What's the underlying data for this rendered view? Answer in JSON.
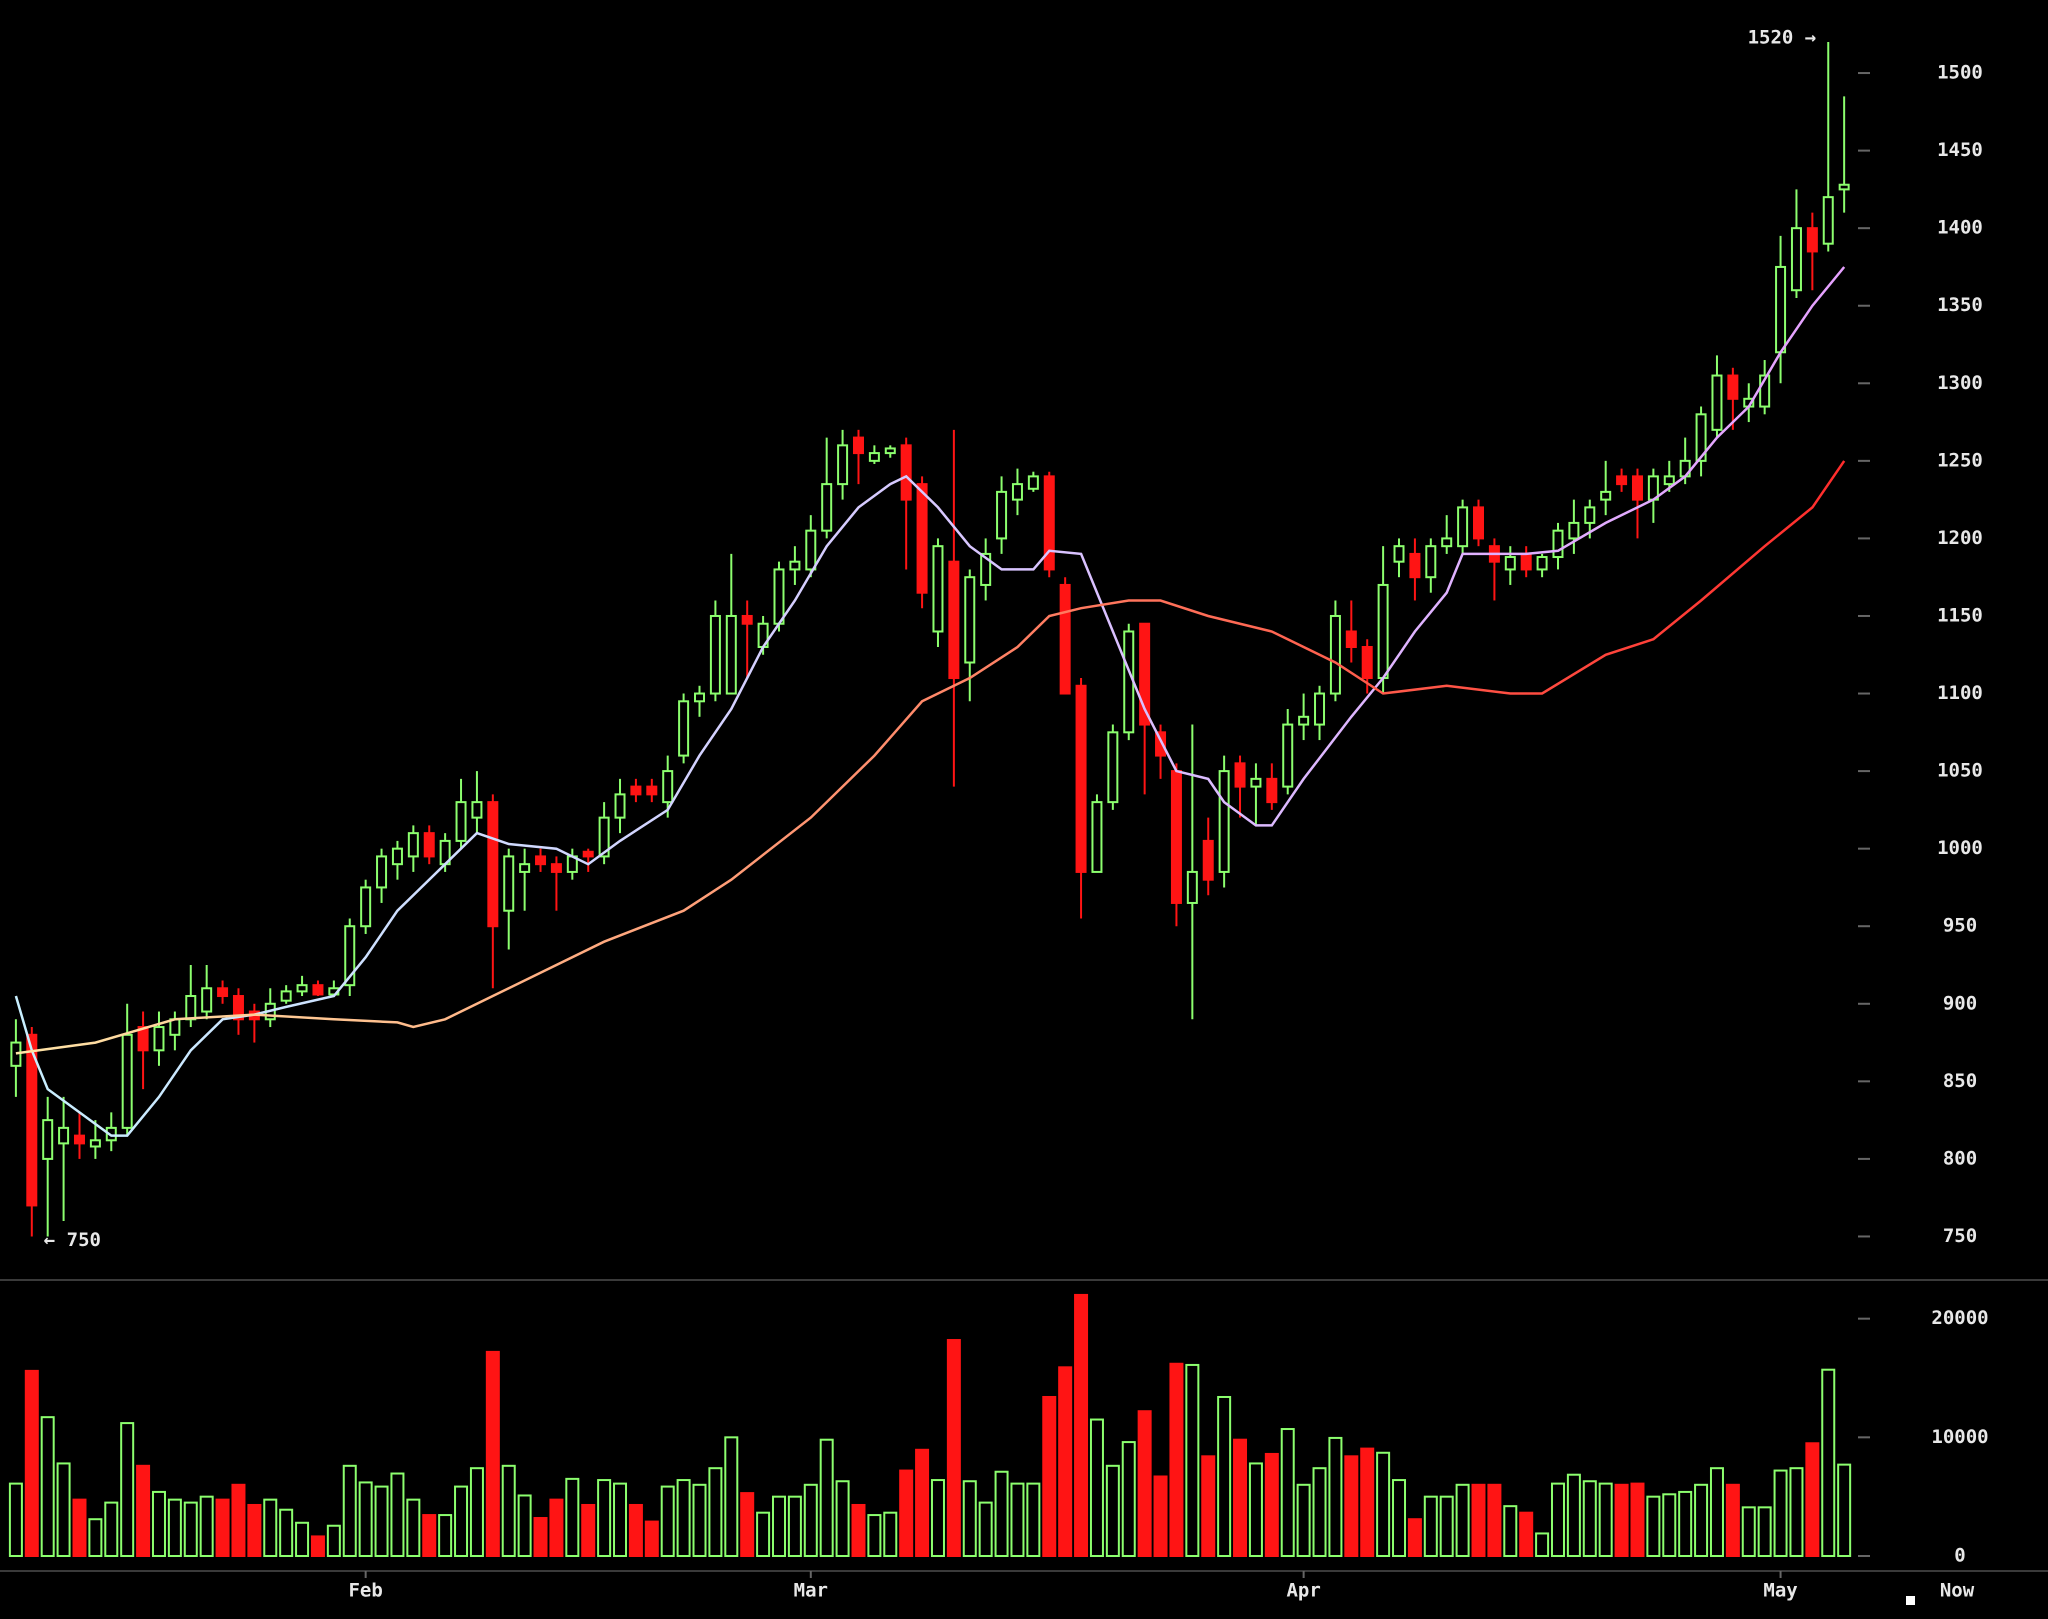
{
  "chart_data": {
    "type": "candlestick",
    "up_color": "#8cff6e",
    "down_color": "#ff1414",
    "xlim": [
      -1,
      116.5
    ],
    "xticks": [
      {
        "value": 22,
        "label": "Feb"
      },
      {
        "value": 50,
        "label": "Mar"
      },
      {
        "value": 81,
        "label": "Apr"
      },
      {
        "value": 111,
        "label": "May"
      }
    ],
    "now_label": "Now",
    "ylim": [
      720,
      1540
    ],
    "yticks": [
      750,
      800,
      850,
      900,
      950,
      1000,
      1050,
      1100,
      1150,
      1200,
      1250,
      1300,
      1350,
      1400,
      1450,
      1500
    ],
    "volume_ylim": [
      0,
      22500
    ],
    "volume_yticks": [
      0,
      10000,
      20000
    ],
    "candles": {
      "open": [
        860,
        880,
        800,
        810,
        815,
        808,
        812,
        820,
        885,
        870,
        880,
        890,
        895,
        910,
        905,
        895,
        890,
        902,
        908,
        912,
        906,
        912,
        950,
        975,
        990,
        995,
        1010,
        990,
        1005,
        1020,
        1030,
        960,
        985,
        995,
        990,
        985,
        998,
        995,
        1020,
        1040,
        1040,
        1030,
        1060,
        1095,
        1100,
        1100,
        1150,
        1130,
        1145,
        1180,
        1180,
        1205,
        1235,
        1265,
        1250,
        1255,
        1260,
        1235,
        1140,
        1185,
        1120,
        1170,
        1200,
        1225,
        1232,
        1240,
        1170,
        1105,
        985,
        1030,
        1075,
        1145,
        1075,
        1050,
        965,
        1005,
        985,
        1055,
        1040,
        1045,
        1040,
        1080,
        1080,
        1100,
        1140,
        1130,
        1110,
        1185,
        1190,
        1175,
        1195,
        1195,
        1220,
        1195,
        1180,
        1190,
        1180,
        1188,
        1200,
        1210,
        1225,
        1240,
        1240,
        1225,
        1235,
        1240,
        1250,
        1270,
        1305,
        1285,
        1285,
        1320,
        1360,
        1400,
        1390,
        1425
      ],
      "high": [
        890,
        885,
        840,
        840,
        830,
        825,
        830,
        900,
        895,
        895,
        895,
        925,
        925,
        915,
        910,
        900,
        910,
        912,
        918,
        915,
        915,
        955,
        980,
        1000,
        1005,
        1015,
        1015,
        1010,
        1045,
        1050,
        1035,
        1000,
        1000,
        1000,
        995,
        1000,
        1000,
        1030,
        1045,
        1045,
        1045,
        1060,
        1100,
        1105,
        1160,
        1190,
        1160,
        1150,
        1185,
        1195,
        1215,
        1265,
        1270,
        1270,
        1260,
        1260,
        1265,
        1240,
        1200,
        1270,
        1180,
        1200,
        1240,
        1245,
        1243,
        1243,
        1175,
        1110,
        1035,
        1080,
        1145,
        1145,
        1080,
        1055,
        1080,
        1020,
        1060,
        1060,
        1055,
        1055,
        1090,
        1100,
        1105,
        1160,
        1160,
        1135,
        1195,
        1200,
        1200,
        1200,
        1215,
        1225,
        1225,
        1200,
        1195,
        1195,
        1190,
        1210,
        1225,
        1225,
        1250,
        1245,
        1245,
        1245,
        1250,
        1265,
        1285,
        1318,
        1310,
        1300,
        1315,
        1395,
        1425,
        1410,
        1520,
        1485
      ],
      "low": [
        840,
        750,
        750,
        760,
        800,
        800,
        805,
        815,
        845,
        860,
        870,
        885,
        890,
        900,
        880,
        875,
        885,
        900,
        905,
        905,
        905,
        905,
        945,
        965,
        980,
        985,
        990,
        985,
        1000,
        1010,
        910,
        935,
        960,
        985,
        960,
        980,
        985,
        990,
        1010,
        1030,
        1030,
        1020,
        1055,
        1085,
        1095,
        1100,
        1110,
        1125,
        1140,
        1170,
        1175,
        1200,
        1225,
        1235,
        1248,
        1252,
        1180,
        1155,
        1130,
        1040,
        1095,
        1160,
        1190,
        1215,
        1230,
        1175,
        1100,
        955,
        985,
        1025,
        1070,
        1035,
        1045,
        950,
        890,
        970,
        975,
        1020,
        1015,
        1025,
        1035,
        1070,
        1070,
        1095,
        1120,
        1100,
        1100,
        1175,
        1160,
        1165,
        1190,
        1190,
        1195,
        1160,
        1170,
        1175,
        1175,
        1180,
        1190,
        1200,
        1215,
        1230,
        1200,
        1210,
        1230,
        1235,
        1240,
        1265,
        1270,
        1275,
        1280,
        1300,
        1355,
        1360,
        1385,
        1410
      ],
      "close": [
        875,
        770,
        825,
        820,
        810,
        812,
        820,
        880,
        870,
        885,
        890,
        905,
        910,
        905,
        890,
        890,
        900,
        908,
        912,
        906,
        910,
        950,
        975,
        995,
        1000,
        1010,
        995,
        1005,
        1030,
        1030,
        950,
        995,
        990,
        990,
        985,
        995,
        995,
        1020,
        1035,
        1035,
        1035,
        1050,
        1095,
        1100,
        1150,
        1150,
        1145,
        1145,
        1180,
        1185,
        1205,
        1235,
        1260,
        1255,
        1255,
        1258,
        1225,
        1165,
        1195,
        1110,
        1175,
        1190,
        1230,
        1235,
        1240,
        1180,
        1100,
        985,
        1030,
        1075,
        1140,
        1080,
        1060,
        965,
        985,
        980,
        1050,
        1040,
        1045,
        1030,
        1080,
        1085,
        1100,
        1150,
        1130,
        1110,
        1170,
        1195,
        1175,
        1195,
        1200,
        1220,
        1200,
        1185,
        1188,
        1180,
        1188,
        1205,
        1210,
        1220,
        1230,
        1235,
        1225,
        1240,
        1240,
        1250,
        1280,
        1305,
        1290,
        1290,
        1305,
        1375,
        1400,
        1385,
        1420,
        1428
      ]
    },
    "volume": [
      6100,
      15600,
      11700,
      7800,
      4750,
      3100,
      4500,
      11200,
      7600,
      5400,
      4750,
      4500,
      5000,
      4750,
      6000,
      4300,
      4750,
      3900,
      2800,
      1650,
      2550,
      7600,
      6200,
      5850,
      6950,
      4750,
      3450,
      3450,
      5850,
      7400,
      17200,
      7600,
      5100,
      3200,
      4750,
      6500,
      4300,
      6400,
      6100,
      4300,
      2900,
      5850,
      6400,
      6000,
      7400,
      10000,
      5300,
      3650,
      5000,
      5000,
      6000,
      9800,
      6300,
      4300,
      3450,
      3650,
      7200,
      8950,
      6400,
      18200,
      6300,
      4500,
      7100,
      6100,
      6100,
      13400,
      15900,
      22000,
      11500,
      7600,
      9600,
      12200,
      6700,
      16200,
      16100,
      8400,
      13400,
      9800,
      7800,
      8600,
      10700,
      6000,
      7400,
      9950,
      8400,
      9050,
      8700,
      6400,
      3100,
      5000,
      5000,
      6000,
      6000,
      6000,
      4200,
      3650,
      1900,
      6100,
      6850,
      6300,
      6100,
      6000,
      6100,
      5000,
      5200,
      5400,
      6000,
      7400,
      6000,
      4100,
      4100,
      7200,
      7400,
      9500,
      15700,
      7700
    ],
    "moving_averages": [
      {
        "colors": [
          "#c8f0ff",
          "#e6a0ff"
        ],
        "x": [
          0,
          1,
          2,
          4,
          6,
          7,
          9,
          11,
          13,
          15,
          17,
          20,
          22,
          24,
          27,
          29,
          31,
          34,
          36,
          38,
          41,
          43,
          45,
          47,
          49,
          51,
          53,
          55,
          56,
          58,
          60,
          62,
          64,
          65,
          67,
          69,
          71,
          73,
          75,
          76,
          78,
          79,
          81,
          84,
          86,
          88,
          90,
          91,
          95,
          97,
          100,
          103,
          105,
          107,
          109,
          111,
          113,
          115
        ],
        "values": [
          905,
          870,
          845,
          830,
          815,
          815,
          840,
          870,
          890,
          893,
          898,
          905,
          930,
          960,
          990,
          1010,
          1003,
          1000,
          990,
          1005,
          1025,
          1060,
          1090,
          1130,
          1160,
          1195,
          1220,
          1235,
          1240,
          1220,
          1195,
          1180,
          1180,
          1192,
          1190,
          1140,
          1090,
          1050,
          1045,
          1030,
          1015,
          1015,
          1045,
          1085,
          1110,
          1140,
          1165,
          1190,
          1190,
          1192,
          1210,
          1225,
          1240,
          1265,
          1285,
          1320,
          1350,
          1375
        ]
      },
      {
        "colors": [
          "#ffe6a8",
          "#ff2a2a"
        ],
        "x": [
          0,
          5,
          10,
          15,
          20,
          24,
          25,
          27,
          30,
          33,
          37,
          42,
          45,
          50,
          54,
          57,
          60,
          63,
          65,
          67,
          70,
          72,
          75,
          79,
          83,
          86,
          90,
          94,
          96,
          100,
          103,
          106,
          110,
          113,
          115
        ],
        "values": [
          868,
          875,
          890,
          893,
          890,
          888,
          885,
          890,
          905,
          920,
          940,
          960,
          980,
          1020,
          1060,
          1095,
          1110,
          1130,
          1150,
          1155,
          1160,
          1160,
          1150,
          1140,
          1120,
          1100,
          1105,
          1100,
          1100,
          1125,
          1135,
          1160,
          1195,
          1220,
          1250
        ]
      }
    ],
    "annotations": [
      {
        "index": 114,
        "value": 1520,
        "label": "1520 →"
      },
      {
        "index": 1,
        "value": 750,
        "label": "← 750"
      }
    ]
  }
}
